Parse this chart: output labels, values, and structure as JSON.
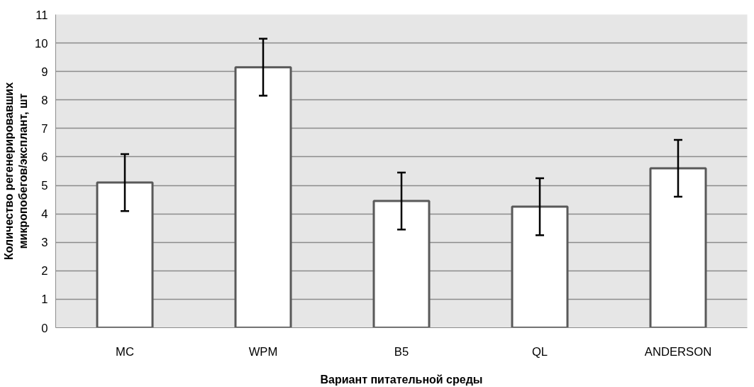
{
  "chart_data": {
    "type": "bar",
    "xlabel": "Вариант питательной среды",
    "ylabel": "Количество регенерировавших микропобегов/эксплант, шт",
    "categories": [
      "MC",
      "WPM",
      "B5",
      "QL",
      "ANDERSON"
    ],
    "values": [
      5.1,
      9.15,
      4.45,
      4.25,
      5.6
    ],
    "errors": [
      1.0,
      1.0,
      1.0,
      1.0,
      1.0
    ],
    "color": "#ffffff",
    "ylim": [
      0,
      11
    ],
    "yticks": [
      0,
      1,
      2,
      3,
      4,
      5,
      6,
      7,
      8,
      9,
      10,
      11
    ],
    "grid": "y"
  }
}
